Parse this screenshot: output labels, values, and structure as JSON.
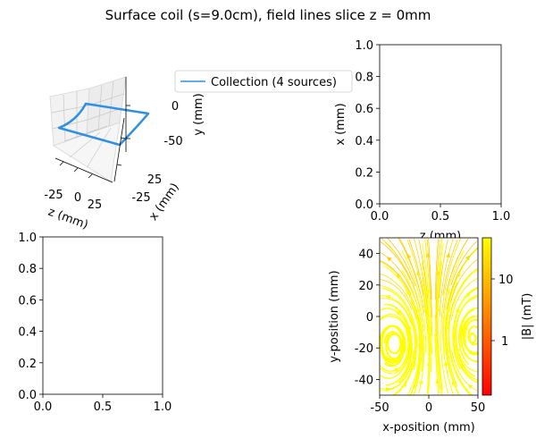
{
  "figure_title": "Surface coil (s=9.0cm), field lines slice z = 0mm",
  "chart_data": [
    {
      "id": "panel_3d",
      "type": "line",
      "projection": "3d",
      "xlabel": "z (mm)",
      "ylabel": "x (mm)",
      "zlabel": "y (mm)",
      "x_ticks": [
        "-25",
        "0",
        "25"
      ],
      "y_ticks": [
        "-25",
        "25"
      ],
      "z_ticks": [
        "0",
        "-50"
      ],
      "legend": {
        "entries": [
          "Collection (4 sources)"
        ],
        "color": "#2e8fe5",
        "placement": "outside-right"
      },
      "series": [
        {
          "name": "Collection (4 sources)",
          "color": "#2e8fe5",
          "shape": "saddle-shaped rectangular loop bent around a cylinder surface"
        }
      ]
    },
    {
      "id": "panel_top_right",
      "type": "line",
      "xlabel": "z (mm)",
      "ylabel": "x (mm)",
      "xlim": [
        0,
        1
      ],
      "ylim": [
        0,
        1
      ],
      "x_ticks": [
        "0.0",
        "0.5",
        "1.0"
      ],
      "y_ticks": [
        "0.0",
        "0.2",
        "0.4",
        "0.6",
        "0.8",
        "1.0"
      ],
      "series": []
    },
    {
      "id": "panel_bottom_left",
      "type": "line",
      "xlabel": "",
      "ylabel": "",
      "xlim": [
        0,
        1
      ],
      "ylim": [
        0,
        1
      ],
      "x_ticks": [
        "0.0",
        "0.5",
        "1.0"
      ],
      "y_ticks": [
        "0.0",
        "0.2",
        "0.4",
        "0.6",
        "0.8",
        "1.0"
      ],
      "series": []
    },
    {
      "id": "panel_streamplot",
      "type": "heatmap",
      "subtype": "streamplot",
      "xlabel": "x-position (mm)",
      "ylabel": "y-position (mm)",
      "xlim": [
        -50,
        50
      ],
      "ylim": [
        -50,
        50
      ],
      "x_ticks": [
        "-50",
        "0",
        "50"
      ],
      "y_ticks": [
        "40",
        "20",
        "0",
        "-20",
        "-40"
      ],
      "colormap": "autumn",
      "colormap_colors": [
        "#ff0000",
        "#ff8000",
        "#ffff00"
      ],
      "colorbar": {
        "label": "|B| (mT)",
        "scale": "log",
        "ticks": [
          "10",
          "1"
        ]
      },
      "vortex_centers_mm": [
        [
          -35,
          -18
        ],
        [
          45,
          -13
        ]
      ]
    }
  ]
}
